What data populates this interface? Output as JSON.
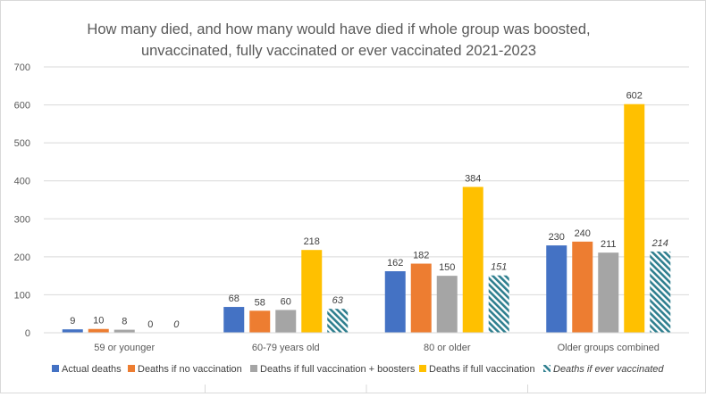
{
  "chart_data": {
    "type": "bar",
    "title": "How many died, and how many would have died if whole group was boosted, unvaccinated, fully vaccinated or ever vaccinated 2021-2023",
    "title_lines": [
      "How many died, and how many would have died if whole group was boosted,",
      "unvaccinated, fully vaccinated or ever vaccinated 2021-2023"
    ],
    "xlabel": "",
    "ylabel": "",
    "ylim": [
      0,
      700
    ],
    "yticks": [
      0,
      100,
      200,
      300,
      400,
      500,
      600,
      700
    ],
    "grid": true,
    "legend_position": "bottom",
    "categories": [
      "59 or younger",
      "60-79 years old",
      "80 or older",
      "Older groups combined"
    ],
    "series": [
      {
        "name": "Actual deaths",
        "color": "#4472c4",
        "pattern": "solid",
        "italic": false,
        "values": [
          9,
          68,
          162,
          230
        ],
        "labels": [
          "9",
          "68",
          "162",
          "230"
        ]
      },
      {
        "name": "Deaths if no vaccination",
        "color": "#ed7d31",
        "pattern": "solid",
        "italic": false,
        "values": [
          10,
          58,
          182,
          240
        ],
        "labels": [
          "10",
          "58",
          "182",
          "240"
        ]
      },
      {
        "name": "Deaths if full vaccination + boosters",
        "color": "#a5a5a5",
        "pattern": "solid",
        "italic": false,
        "values": [
          8,
          60,
          150,
          211
        ],
        "labels": [
          "8",
          "60",
          "150",
          "211"
        ]
      },
      {
        "name": "Deaths if full vaccination",
        "color": "#ffc000",
        "pattern": "solid",
        "italic": false,
        "values": [
          0,
          218,
          384,
          602
        ],
        "labels": [
          "0",
          "218",
          "384",
          "602"
        ]
      },
      {
        "name": "Deaths if ever vaccinated",
        "color": "#2f7f8f",
        "pattern": "hatched",
        "italic": true,
        "values": [
          0,
          63,
          151,
          214
        ],
        "labels": [
          "0",
          "63",
          "151",
          "214"
        ]
      }
    ]
  }
}
